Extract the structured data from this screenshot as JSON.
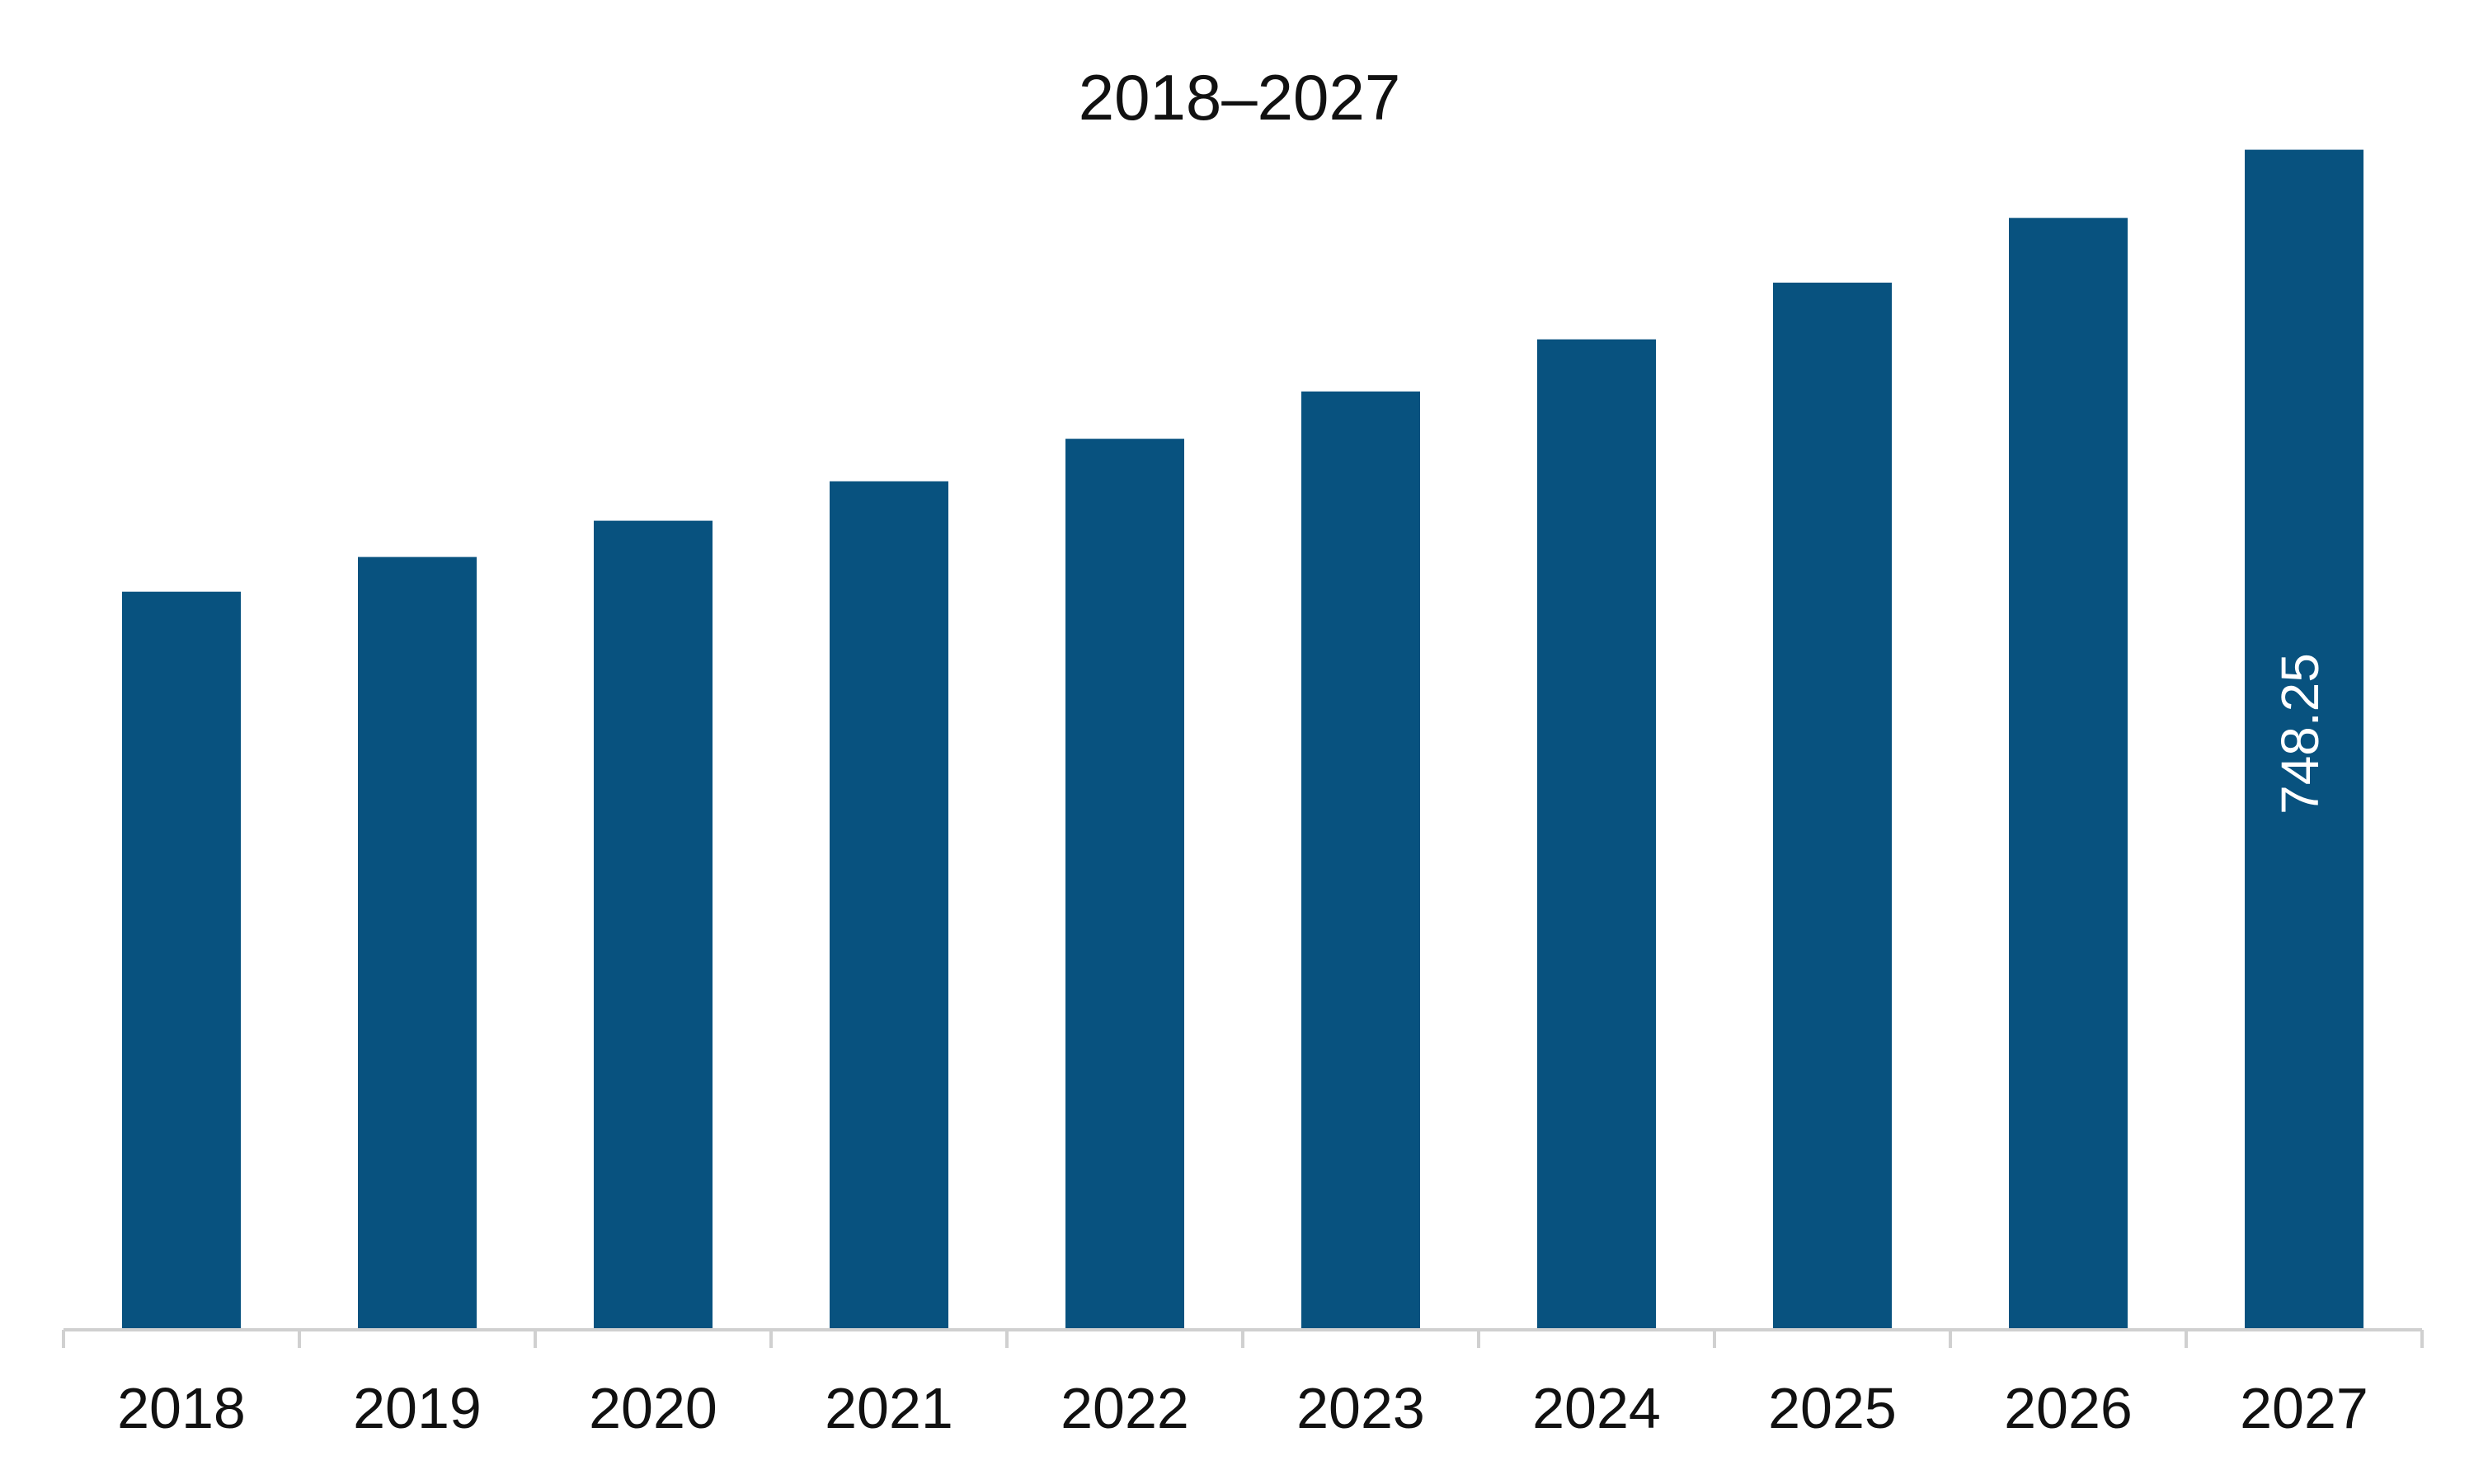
{
  "chart_data": {
    "type": "bar",
    "title": "2018–2027",
    "xlabel": "",
    "ylabel": "",
    "categories": [
      "2018",
      "2019",
      "2020",
      "2021",
      "2022",
      "2023",
      "2024",
      "2025",
      "2026",
      "2027"
    ],
    "series": [
      {
        "values": [
          468,
          490,
          513,
          538,
          565,
          595,
          628,
          664,
          705,
          748.25
        ],
        "data_labels": [
          "",
          "",
          "",
          "",
          "",
          "",
          "",
          "",
          "",
          "748.25"
        ]
      }
    ],
    "ylim": [
      0,
      770
    ],
    "grid": false,
    "legend": "none",
    "bar_color": "#08527f",
    "axis_color": "#d0d0d0",
    "data_label_color": "#ffffff"
  }
}
